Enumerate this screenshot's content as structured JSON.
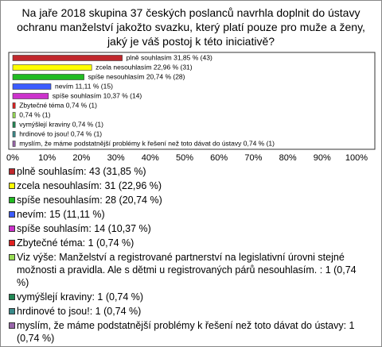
{
  "chart_data": {
    "type": "bar",
    "orientation": "horizontal",
    "title": "Na jaře 2018 skupina 37 českých poslanců navrhla doplnit do ústavy ochranu manželství jakožto svazku, který platí pouze pro muže a ženy, jaký je váš postoj k této iniciativě?",
    "values": [
      31.85,
      22.96,
      20.74,
      11.11,
      10.37,
      0.74,
      0.74,
      0.74,
      0.74,
      0.74
    ],
    "value_labels": [
      "plně souhlasím 31,85 % (43)",
      "zcela nesouhlasím 22,96 % (31)",
      "spíše nesouhlasím 20,74 % (28)",
      "nevím 11,11 % (15)",
      "spíše souhlasím 10,37 % (14)",
      "Zbytečné téma 0,74 % (1)",
      "0,74 % (1)",
      "vymýšlejí kraviny 0,74 % (1)",
      "hrdinové to jsou! 0,74 % (1)",
      "myslím, že máme podstatnější problémy k řešení než toto dávat do ústavy 0,74 % (1)"
    ],
    "colors": [
      "#c0282d",
      "#ffff00",
      "#22bb22",
      "#3c5cff",
      "#cc33cc",
      "#e02020",
      "#99dd55",
      "#228855",
      "#3a8a8a",
      "#9966aa"
    ],
    "legend": [
      "plně souhlasím: 43 (31,85 %)",
      "zcela nesouhlasím: 31 (22,96 %)",
      "spíše nesouhlasím: 28 (20,74 %)",
      "nevím: 15 (11,11 %)",
      "spíše souhlasím: 14 (10,37 %)",
      "Zbytečné téma: 1 (0,74 %)",
      "Viz výše: Manželství a registrované partnerství na legislativní úrovni stejné možnosti a pravidla. Ale s dětmi u registrovaných párů nesouhlasím. : 1 (0,74 %)",
      "vymýšlejí kraviny: 1 (0,74 %)",
      "hrdinové to jsou!: 1 (0,74 %)",
      "myslím, že máme podstatnější problémy k řešení než toto dávat do ústavy: 1 (0,74 %)"
    ],
    "xlim": [
      0,
      100
    ],
    "xticks": [
      {
        "value": 0,
        "label": "0%"
      },
      {
        "value": 10,
        "label": "10%"
      },
      {
        "value": 20,
        "label": "20%"
      },
      {
        "value": 30,
        "label": "30%"
      },
      {
        "value": 40,
        "label": "40%"
      },
      {
        "value": 50,
        "label": "50%"
      },
      {
        "value": 60,
        "label": "60%"
      },
      {
        "value": 70,
        "label": "70%"
      },
      {
        "value": 80,
        "label": "80%"
      },
      {
        "value": 90,
        "label": "90%"
      },
      {
        "value": 100,
        "label": "100%"
      }
    ]
  }
}
